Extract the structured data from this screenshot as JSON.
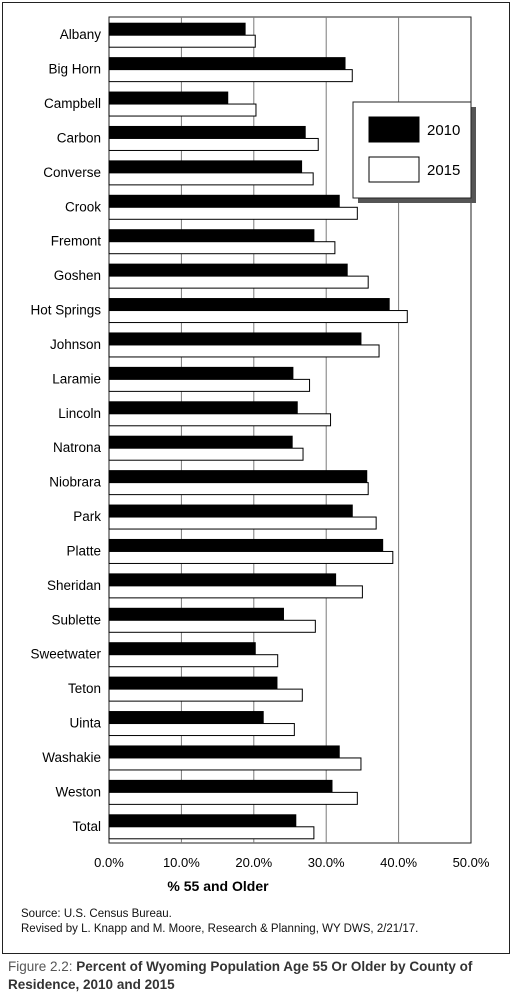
{
  "chart_data": {
    "type": "bar",
    "orientation": "horizontal",
    "title": "",
    "xlabel": "% 55 and Older",
    "ylabel": "",
    "xlim": [
      0,
      50
    ],
    "x_ticks": [
      "0.0%",
      "10.0%",
      "20.0%",
      "30.0%",
      "40.0%",
      "50.0%"
    ],
    "grid": "vertical",
    "legend_position": "top-right",
    "categories": [
      "Albany",
      "Big Horn",
      "Campbell",
      "Carbon",
      "Converse",
      "Crook",
      "Fremont",
      "Goshen",
      "Hot Springs",
      "Johnson",
      "Laramie",
      "Lincoln",
      "Natrona",
      "Niobrara",
      "Park",
      "Platte",
      "Sheridan",
      "Sublette",
      "Sweetwater",
      "Teton",
      "Uinta",
      "Washakie",
      "Weston",
      "Total"
    ],
    "series": [
      {
        "name": "2010",
        "color": "#000000",
        "values": [
          18.8,
          32.6,
          16.4,
          27.1,
          26.6,
          31.8,
          28.3,
          32.9,
          38.7,
          34.8,
          25.4,
          26.0,
          25.3,
          35.6,
          33.6,
          37.8,
          31.3,
          24.1,
          20.2,
          23.2,
          21.3,
          31.8,
          30.8,
          25.8
        ]
      },
      {
        "name": "2015",
        "color": "#ffffff",
        "values": [
          20.2,
          33.6,
          20.3,
          28.9,
          28.2,
          34.3,
          31.2,
          35.8,
          41.2,
          37.3,
          27.7,
          30.6,
          26.8,
          35.8,
          36.9,
          39.2,
          35.0,
          28.5,
          23.3,
          26.7,
          25.6,
          34.8,
          34.3,
          28.3
        ]
      }
    ]
  },
  "source_lines": [
    "Source: U.S. Census Bureau.",
    "Revised by L. Knapp and M. Moore, Research & Planning, WY DWS, 2/21/17."
  ],
  "caption": {
    "lead": "Figure 2.2: ",
    "title": "Percent of Wyoming Population Age 55 Or Older by County of Residence, 2010 and 2015"
  }
}
